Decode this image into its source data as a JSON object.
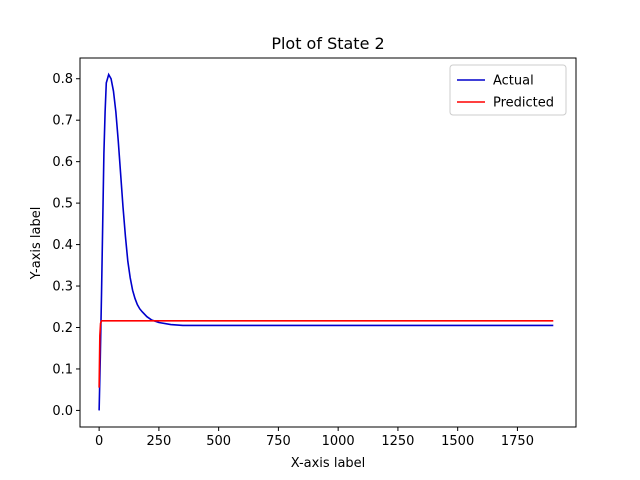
{
  "chart_data": {
    "type": "line",
    "title": "Plot of State 2",
    "xlabel": "X-axis label",
    "ylabel": "Y-axis label",
    "xlim": [
      -80,
      1995
    ],
    "ylim": [
      -0.04,
      0.85
    ],
    "xticks": [
      0,
      250,
      500,
      750,
      1000,
      1250,
      1500,
      1750
    ],
    "yticks": [
      0.0,
      0.1,
      0.2,
      0.3,
      0.4,
      0.5,
      0.6,
      0.7,
      0.8
    ],
    "grid": false,
    "legend_position": "upper right",
    "series": [
      {
        "name": "Actual",
        "color": "#0000cc",
        "x": [
          0,
          5,
          10,
          15,
          20,
          25,
          30,
          35,
          40,
          50,
          60,
          70,
          80,
          90,
          100,
          110,
          120,
          130,
          140,
          150,
          160,
          170,
          180,
          200,
          220,
          250,
          300,
          350,
          400,
          500,
          1000,
          1500,
          1900
        ],
        "y": [
          0.0,
          0.13,
          0.28,
          0.45,
          0.62,
          0.72,
          0.79,
          0.8,
          0.81,
          0.8,
          0.77,
          0.72,
          0.65,
          0.57,
          0.49,
          0.42,
          0.36,
          0.32,
          0.29,
          0.27,
          0.255,
          0.245,
          0.238,
          0.226,
          0.218,
          0.212,
          0.207,
          0.205,
          0.205,
          0.205,
          0.205,
          0.205,
          0.205
        ]
      },
      {
        "name": "Predicted",
        "color": "#ff0000",
        "x": [
          0,
          3,
          6,
          10,
          1900
        ],
        "y": [
          0.055,
          0.18,
          0.21,
          0.216,
          0.216
        ]
      }
    ]
  }
}
